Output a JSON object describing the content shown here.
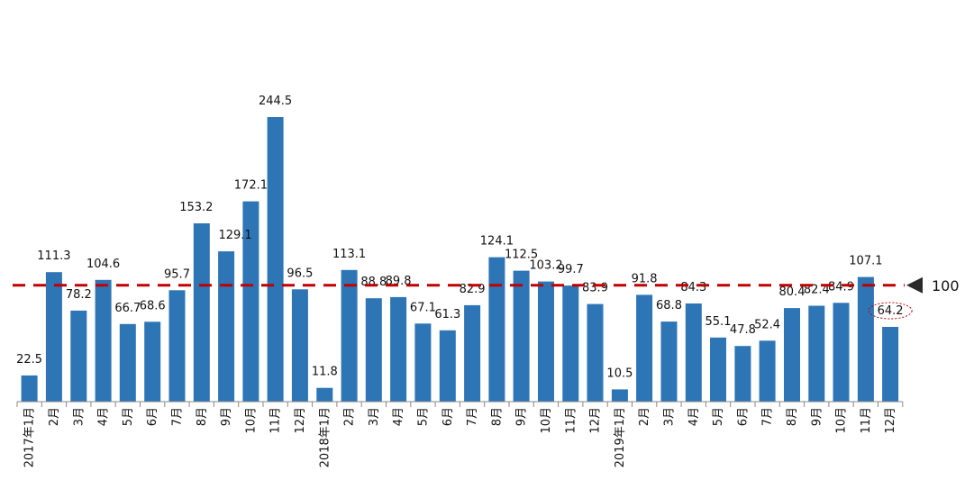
{
  "chart_data": {
    "type": "bar",
    "categories": [
      "2017年1月",
      "2月",
      "3月",
      "4月",
      "5月",
      "6月",
      "7月",
      "8月",
      "9月",
      "10月",
      "11月",
      "12月",
      "2018年1月",
      "2月",
      "3月",
      "4月",
      "5月",
      "6月",
      "7月",
      "8月",
      "9月",
      "10月",
      "11月",
      "12月",
      "2019年1月",
      "2月",
      "3月",
      "4月",
      "5月",
      "6月",
      "7月",
      "8月",
      "9月",
      "10月",
      "11月",
      "12月"
    ],
    "values": [
      22.5,
      111.3,
      78.2,
      104.6,
      66.7,
      68.6,
      95.7,
      153.2,
      129.1,
      172.1,
      244.5,
      96.5,
      11.8,
      113.1,
      88.8,
      89.8,
      67.1,
      61.3,
      82.9,
      124.1,
      112.5,
      103.2,
      99.7,
      83.9,
      10.5,
      91.8,
      68.8,
      84.3,
      55.1,
      47.8,
      52.4,
      80.4,
      82.4,
      84.9,
      107.1,
      64.2
    ],
    "value_labels": [
      "22.5",
      "111.3",
      "78.2",
      "104.6",
      "66.7",
      "68.6",
      "95.7",
      "153.2",
      "129.1",
      "172.1",
      "244.5",
      "96.5",
      "11.8",
      "113.1",
      "88.8",
      "89.8",
      "67.1",
      "61.3",
      "82.9",
      "124.1",
      "112.5",
      "103.2",
      "99.7",
      "83.9",
      "10.5",
      "91.8",
      "68.8",
      "84.3",
      "55.1",
      "47.8",
      "52.4",
      "80.4",
      "82.4",
      "84.9",
      "107.1",
      "64.2"
    ],
    "reference_line": {
      "value": 100,
      "label": "100",
      "color": "#c00000",
      "style": "dashed"
    },
    "highlighted_index": 35,
    "ylim": [
      0,
      280
    ],
    "grid": false,
    "bar_color": "#2e75b6",
    "title": "",
    "xlabel": "",
    "ylabel": ""
  }
}
